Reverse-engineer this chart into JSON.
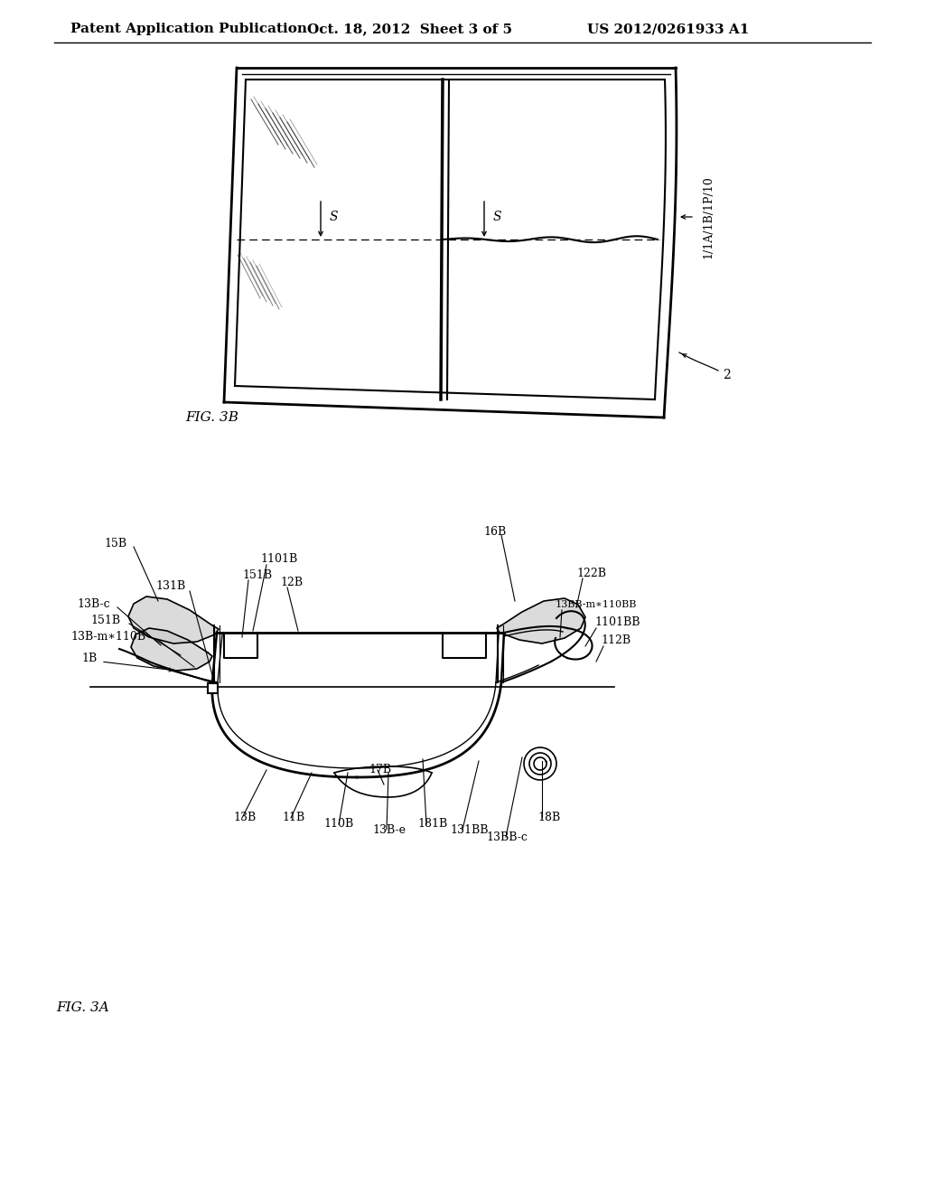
{
  "bg_color": "#ffffff",
  "header_text_left": "Patent Application Publication",
  "header_text_mid": "Oct. 18, 2012  Sheet 3 of 5",
  "header_text_right": "US 2012/0261933 A1",
  "label_fontsize": 9,
  "header_fontsize": 11
}
